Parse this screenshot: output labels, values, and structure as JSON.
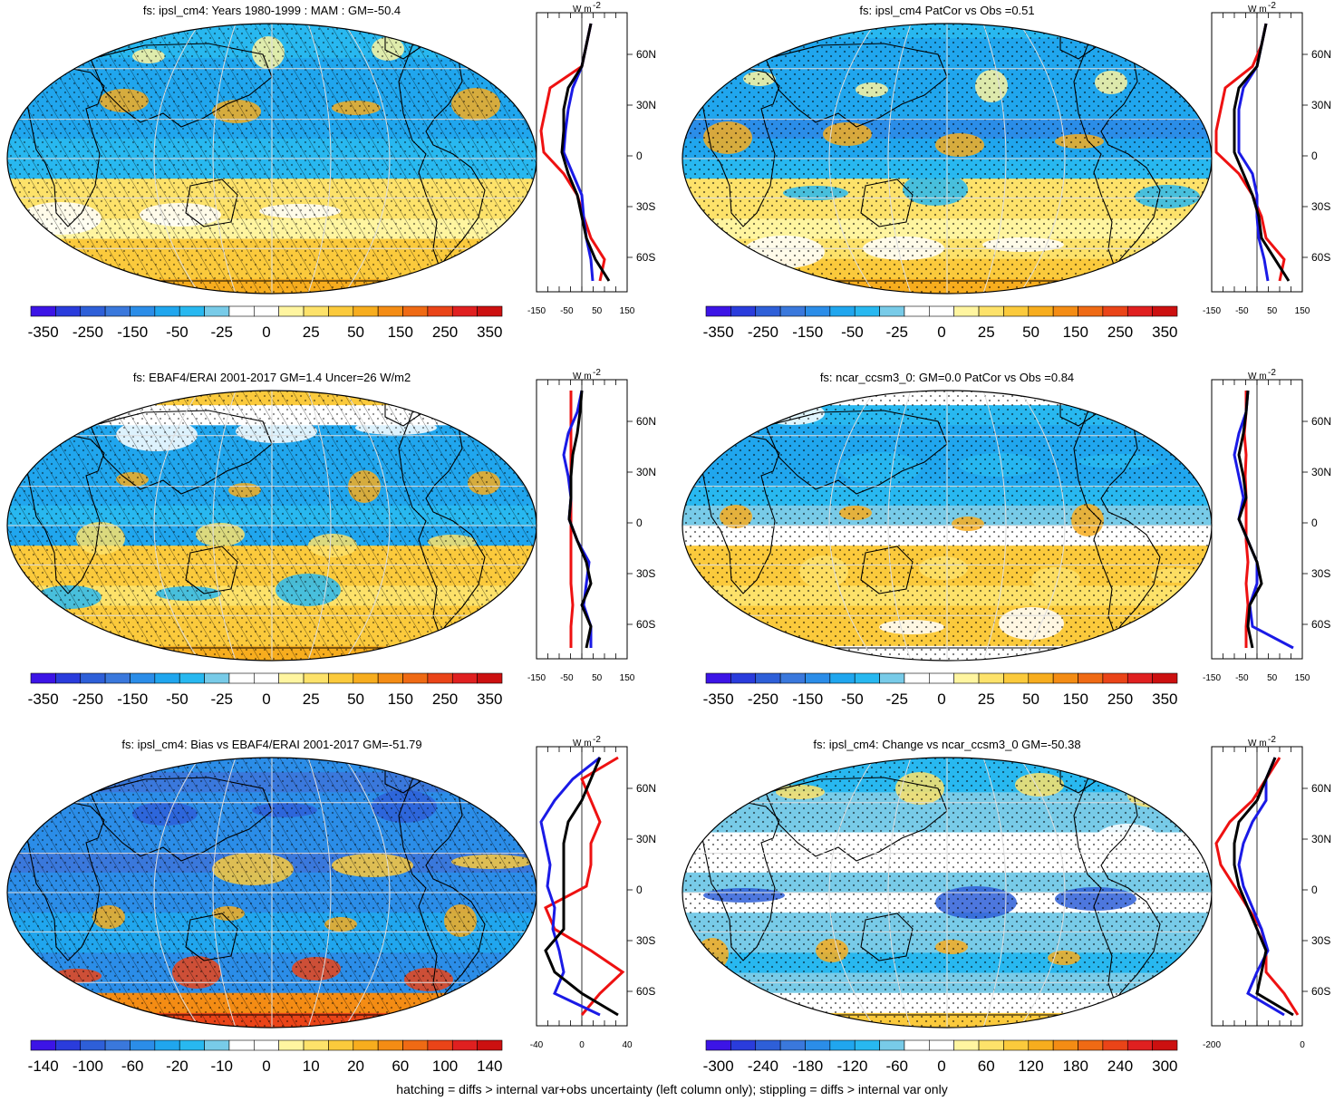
{
  "panels": [
    {
      "id": "p1",
      "title": "fs: ipsl_cm4: Years 1980-1999 : MAM : GM=-50.4",
      "colorbar_labels": [
        "-350",
        "-250",
        "-150",
        "-50",
        "-25",
        "0",
        "25",
        "50",
        "150",
        "250",
        "350"
      ],
      "profile_x_ticks": [
        "-150",
        "-50",
        "50",
        "150"
      ],
      "pattern": "hatch"
    },
    {
      "id": "p2",
      "title": "fs: ipsl_cm4 PatCor vs Obs =0.51",
      "colorbar_labels": [
        "-350",
        "-250",
        "-150",
        "-50",
        "-25",
        "0",
        "25",
        "50",
        "150",
        "250",
        "350"
      ],
      "profile_x_ticks": [
        "-150",
        "-50",
        "50",
        "150"
      ],
      "pattern": "stipple"
    },
    {
      "id": "p3",
      "title": "fs: EBAF4/ERAI 2001-2017 GM=1.4 Uncer=26 W/m2",
      "colorbar_labels": [
        "-350",
        "-250",
        "-150",
        "-50",
        "-25",
        "0",
        "25",
        "50",
        "150",
        "250",
        "350"
      ],
      "profile_x_ticks": [
        "-150",
        "-50",
        "50",
        "150"
      ],
      "pattern": "hatch"
    },
    {
      "id": "p4",
      "title": "fs: ncar_ccsm3_0: GM=0.0 PatCor vs Obs =0.84",
      "colorbar_labels": [
        "-350",
        "-250",
        "-150",
        "-50",
        "-25",
        "0",
        "25",
        "50",
        "150",
        "250",
        "350"
      ],
      "profile_x_ticks": [
        "-150",
        "-50",
        "50",
        "150"
      ],
      "pattern": "stipple"
    },
    {
      "id": "p5",
      "title": "fs: ipsl_cm4: Bias vs EBAF4/ERAI 2001-2017 GM=-51.79",
      "colorbar_labels": [
        "-140",
        "-100",
        "-60",
        "-20",
        "-10",
        "0",
        "10",
        "20",
        "60",
        "100",
        "140"
      ],
      "profile_x_ticks": [
        "-40",
        "0",
        "40"
      ],
      "pattern": "hatch"
    },
    {
      "id": "p6",
      "title": "fs: ipsl_cm4: Change vs ncar_ccsm3_0 GM=-50.38",
      "colorbar_labels": [
        "-300",
        "-240",
        "-180",
        "-120",
        "-60",
        "0",
        "60",
        "120",
        "180",
        "240",
        "300"
      ],
      "profile_x_ticks": [
        "-200",
        "0"
      ],
      "pattern": "stipple"
    }
  ],
  "lat_labels": [
    "60N",
    "30N",
    "0",
    "30S",
    "60S"
  ],
  "profile_unit": "W m",
  "profile_unit_sup": "-2",
  "colors": {
    "scale": [
      "#3c14e6",
      "#2a3cdc",
      "#2e5fd8",
      "#3a78dc",
      "#2b8de8",
      "#20a6ee",
      "#28b8f0",
      "#78cbe8",
      "#ffffff",
      "#ffffff",
      "#fff5a0",
      "#fde26a",
      "#fbca3c",
      "#f7ad1e",
      "#f48c14",
      "#ef6a14",
      "#ea4418",
      "#e02020",
      "#cc1010"
    ],
    "model_line": "#000000",
    "blue_line": "#1a1ae6",
    "red_line": "#ee1111"
  },
  "footer": "hatching = diffs > internal var+obs uncertainty (left column only); stippling = diffs > internal var only"
}
